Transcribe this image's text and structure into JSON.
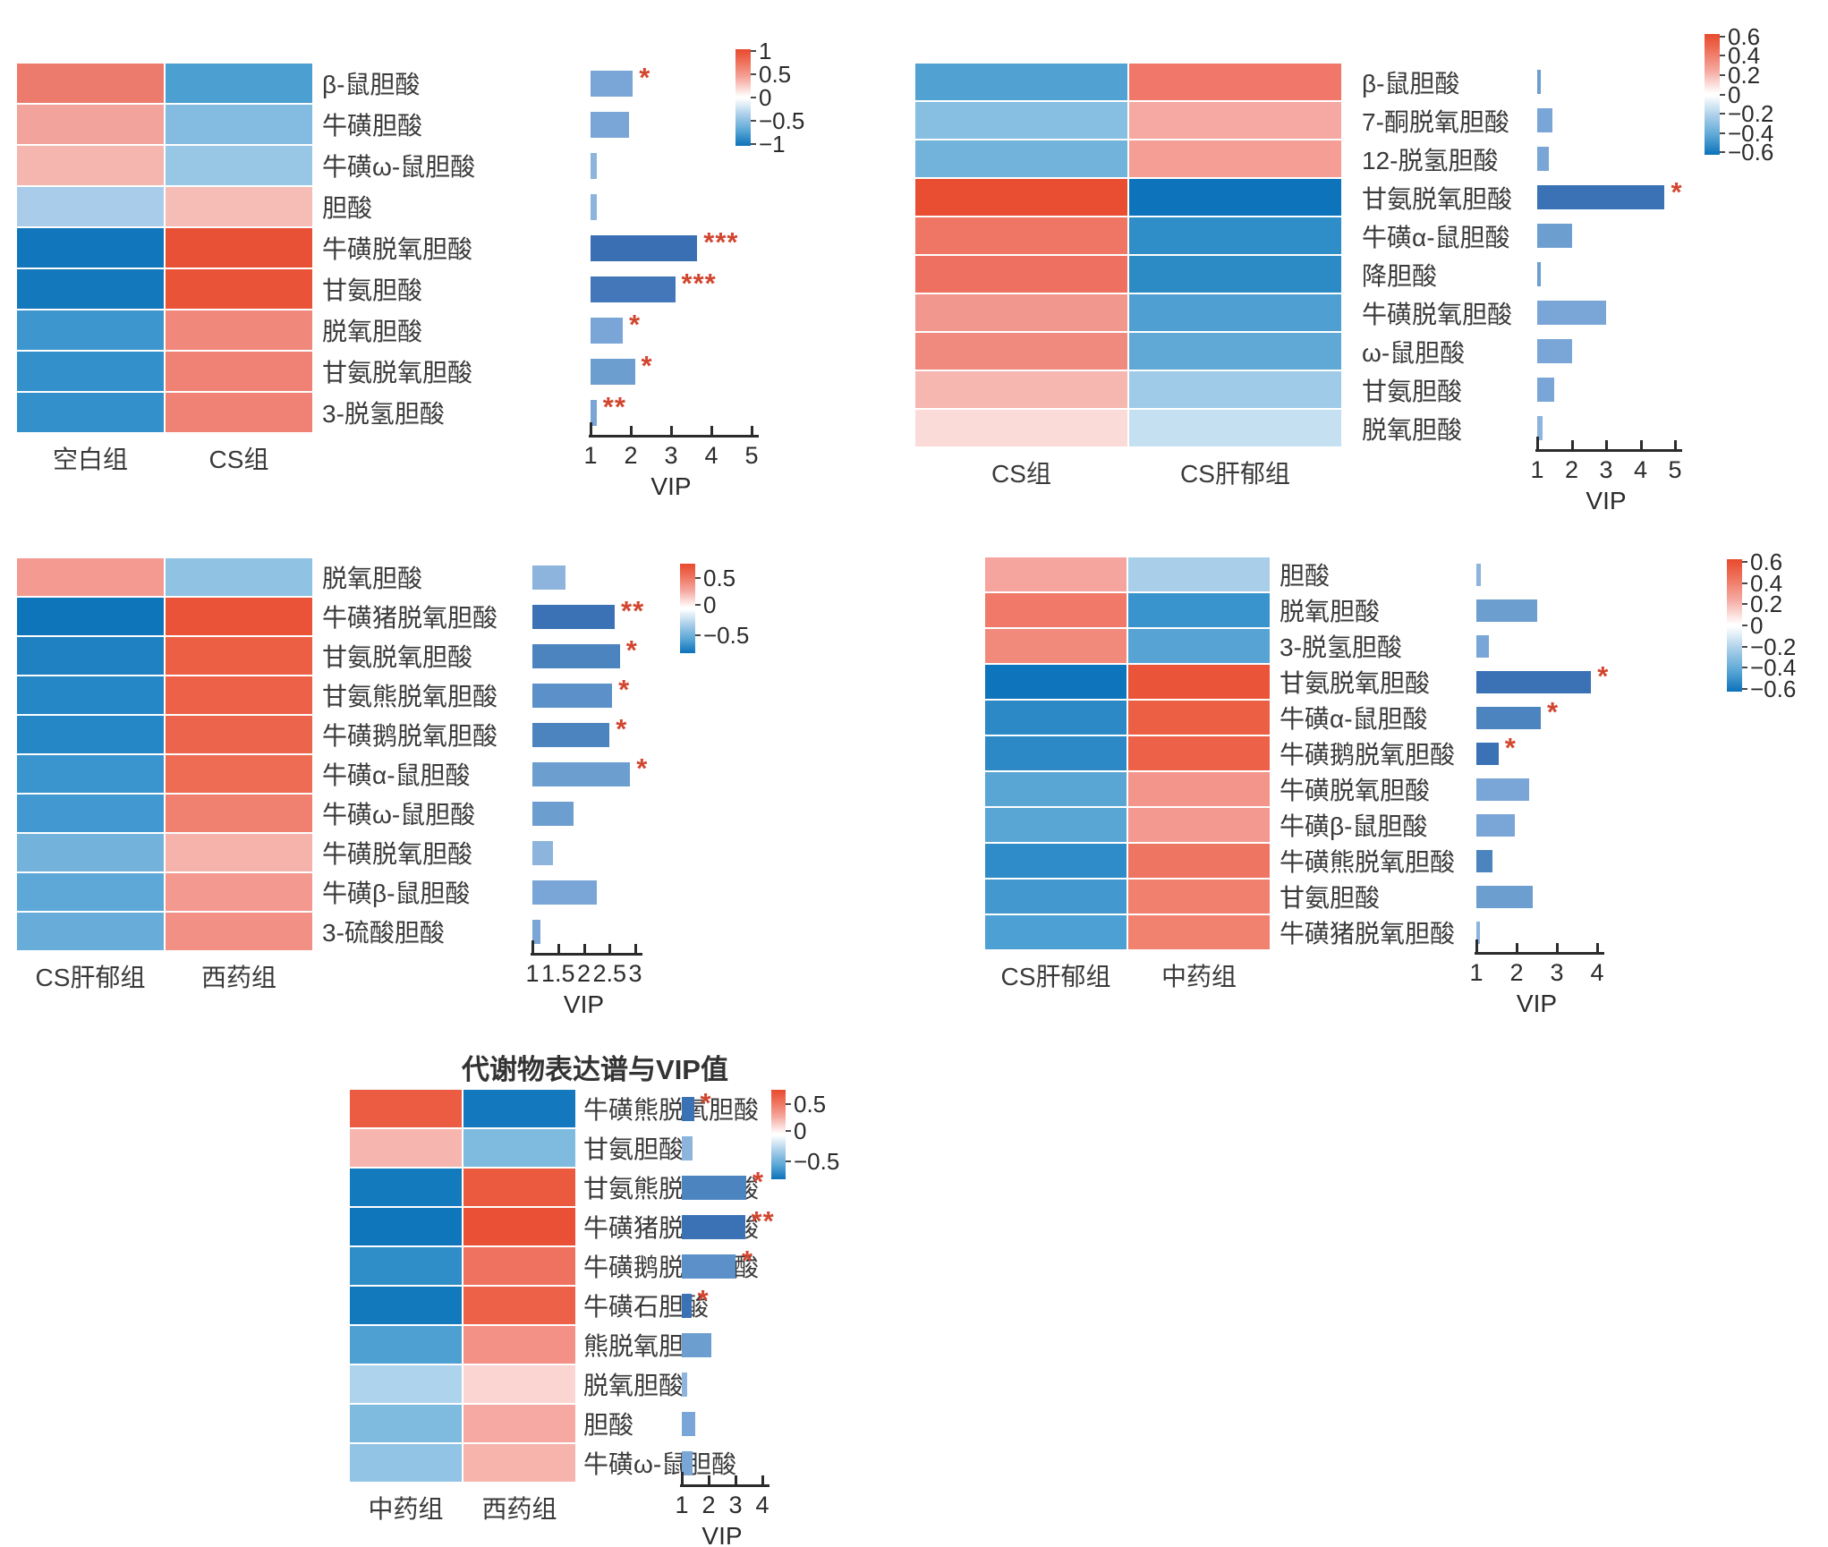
{
  "title": "代谢物表达谱与VIP值",
  "colors": {
    "star": "#d2462f",
    "axis": "#2b2b2b",
    "text": "#3a3a3a",
    "background": "#ffffff"
  },
  "chart_data": [
    {
      "id": "panel-1",
      "type": "heatmap+bar",
      "group_labels": [
        "空白组",
        "CS组"
      ],
      "vip_axis": {
        "label": "VIP",
        "min": 1,
        "max": 5,
        "ticks": [
          "1",
          "2",
          "3",
          "4",
          "5"
        ]
      },
      "colorbar": {
        "tick_labels": [
          "1",
          "0.5",
          "0",
          "−0.5",
          "−1"
        ],
        "tick_positions_pct": [
          2,
          26,
          50,
          74,
          98
        ]
      },
      "rows": [
        {
          "metabolite": "β-鼠胆酸",
          "heat": [
            "#ed7b6d",
            "#4c9fd1"
          ],
          "vip": 2.05,
          "significance": "*",
          "bar_color": "#79a6d7"
        },
        {
          "metabolite": "牛磺胆酸",
          "heat": [
            "#f2a39c",
            "#84bce1"
          ],
          "vip": 1.95,
          "significance": "",
          "bar_color": "#79a6d7"
        },
        {
          "metabolite": "牛磺ω-鼠胆酸",
          "heat": [
            "#f5b6b0",
            "#98c7e6"
          ],
          "vip": 1.15,
          "significance": "",
          "bar_color": "#8cb4dc"
        },
        {
          "metabolite": "胆酸",
          "heat": [
            "#a8cce9",
            "#f6bcb6"
          ],
          "vip": 1.15,
          "significance": "",
          "bar_color": "#8cb4dc"
        },
        {
          "metabolite": "牛磺脱氧胆酸",
          "heat": [
            "#1176bc",
            "#e95136"
          ],
          "vip": 3.65,
          "significance": "***",
          "bar_color": "#3a70b3"
        },
        {
          "metabolite": "甘氨胆酸",
          "heat": [
            "#1478bd",
            "#e95338"
          ],
          "vip": 3.1,
          "significance": "***",
          "bar_color": "#4377ba"
        },
        {
          "metabolite": "脱氧胆酸",
          "heat": [
            "#3e96cf",
            "#f0897b"
          ],
          "vip": 1.8,
          "significance": "*",
          "bar_color": "#79a6d7"
        },
        {
          "metabolite": "甘氨脱氧胆酸",
          "heat": [
            "#3390cb",
            "#ef8274"
          ],
          "vip": 2.1,
          "significance": "*",
          "bar_color": "#6d9ed0"
        },
        {
          "metabolite": "3-脱氢胆酸",
          "heat": [
            "#3390cb",
            "#ef8274"
          ],
          "vip": 1.15,
          "significance": "**",
          "bar_color": "#79a6d7"
        }
      ]
    },
    {
      "id": "panel-2",
      "type": "heatmap+bar",
      "group_labels": [
        "CS组",
        "CS肝郁组"
      ],
      "vip_axis": {
        "label": "VIP",
        "min": 1,
        "max": 5,
        "ticks": [
          "1",
          "2",
          "3",
          "4",
          "5"
        ]
      },
      "colorbar": {
        "tick_labels": [
          "0.6",
          "0.4",
          "0.2",
          "0",
          "−0.2",
          "−0.4",
          "−0.6"
        ],
        "tick_positions_pct": [
          2,
          18,
          34,
          50,
          66,
          82,
          98
        ]
      },
      "rows": [
        {
          "metabolite": "β-鼠胆酸",
          "heat": [
            "#51a2d3",
            "#f0776a"
          ],
          "vip": 1.1,
          "significance": "",
          "bar_color": "#6d9ed0"
        },
        {
          "metabolite": "7-酮脱氧胆酸",
          "heat": [
            "#86bfe2",
            "#f5a9a2"
          ],
          "vip": 1.45,
          "significance": "",
          "bar_color": "#79a6d7"
        },
        {
          "metabolite": "12-脱氢胆酸",
          "heat": [
            "#72b3db",
            "#f49e96"
          ],
          "vip": 1.35,
          "significance": "",
          "bar_color": "#79a6d7"
        },
        {
          "metabolite": "甘氨脱氧胆酸",
          "heat": [
            "#e94e33",
            "#0d73bb"
          ],
          "vip": 4.7,
          "significance": "*",
          "bar_color": "#3a72b5"
        },
        {
          "metabolite": "牛磺α-鼠胆酸",
          "heat": [
            "#ef7564",
            "#2f8dc7"
          ],
          "vip": 2.0,
          "significance": "",
          "bar_color": "#6d9ed0"
        },
        {
          "metabolite": "降胆酸",
          "heat": [
            "#ee7060",
            "#2c8ac5"
          ],
          "vip": 1.1,
          "significance": "",
          "bar_color": "#6d9ed0"
        },
        {
          "metabolite": "牛磺脱氧胆酸",
          "heat": [
            "#f2978d",
            "#4f9fd2"
          ],
          "vip": 3.0,
          "significance": "",
          "bar_color": "#79a6d7"
        },
        {
          "metabolite": "ω-鼠胆酸",
          "heat": [
            "#f18a7e",
            "#60a9d7"
          ],
          "vip": 2.0,
          "significance": "",
          "bar_color": "#79a6d7"
        },
        {
          "metabolite": "甘氨胆酸",
          "heat": [
            "#f6b7b1",
            "#a0cbe8"
          ],
          "vip": 1.5,
          "significance": "",
          "bar_color": "#79a6d7"
        },
        {
          "metabolite": "脱氧胆酸",
          "heat": [
            "#fbdbd7",
            "#c5e0f1"
          ],
          "vip": 1.15,
          "significance": "",
          "bar_color": "#8cb4dc"
        }
      ]
    },
    {
      "id": "panel-3",
      "type": "heatmap+bar",
      "group_labels": [
        "CS肝郁组",
        "西药组"
      ],
      "vip_axis": {
        "label": "VIP",
        "min": 1,
        "max": 3,
        "ticks": [
          "1",
          "1.5",
          "2",
          "2.5",
          "3"
        ]
      },
      "colorbar": {
        "tick_labels": [
          "0.5",
          "0",
          "−0.5"
        ],
        "tick_positions_pct": [
          16,
          46,
          80
        ]
      },
      "rows": [
        {
          "metabolite": "脱氧胆酸",
          "heat": [
            "#f49a91",
            "#90c2e4"
          ],
          "vip": 1.65,
          "significance": "",
          "bar_color": "#8cb4dc"
        },
        {
          "metabolite": "牛磺猪脱氧胆酸",
          "heat": [
            "#0f75bb",
            "#ea5338"
          ],
          "vip": 2.6,
          "significance": "**",
          "bar_color": "#3a72b5"
        },
        {
          "metabolite": "甘氨脱氧胆酸",
          "heat": [
            "#2081c2",
            "#ec5f45"
          ],
          "vip": 2.7,
          "significance": "*",
          "bar_color": "#4c84c0"
        },
        {
          "metabolite": "甘氨熊脱氧胆酸",
          "heat": [
            "#2687c6",
            "#ed6149"
          ],
          "vip": 2.55,
          "significance": "*",
          "bar_color": "#5b90c8"
        },
        {
          "metabolite": "牛磺鹅脱氧胆酸",
          "heat": [
            "#2687c6",
            "#ed644c"
          ],
          "vip": 2.5,
          "significance": "*",
          "bar_color": "#4c84c0"
        },
        {
          "metabolite": "牛磺α-鼠胆酸",
          "heat": [
            "#3a95cf",
            "#ee6b54"
          ],
          "vip": 2.9,
          "significance": "*",
          "bar_color": "#6d9ed0"
        },
        {
          "metabolite": "牛磺ω-鼠胆酸",
          "heat": [
            "#4299d1",
            "#f08171"
          ],
          "vip": 1.8,
          "significance": "",
          "bar_color": "#6d9ed0"
        },
        {
          "metabolite": "牛磺脱氧胆酸",
          "heat": [
            "#73b2db",
            "#f6b3ac"
          ],
          "vip": 1.4,
          "significance": "",
          "bar_color": "#8cb4dc"
        },
        {
          "metabolite": "牛磺β-鼠胆酸",
          "heat": [
            "#5da8d6",
            "#f3998f"
          ],
          "vip": 2.25,
          "significance": "",
          "bar_color": "#79a6d7"
        },
        {
          "metabolite": "3-硫酸胆酸",
          "heat": [
            "#68add9",
            "#f29086"
          ],
          "vip": 1.15,
          "significance": "",
          "bar_color": "#79a6d7"
        }
      ]
    },
    {
      "id": "panel-4",
      "type": "heatmap+bar",
      "group_labels": [
        "CS肝郁组",
        "中药组"
      ],
      "vip_axis": {
        "label": "VIP",
        "min": 1,
        "max": 4,
        "ticks": [
          "1",
          "2",
          "3",
          "4"
        ]
      },
      "colorbar": {
        "tick_labels": [
          "0.6",
          "0.4",
          "0.2",
          "0",
          "−0.2",
          "−0.4",
          "−0.6"
        ],
        "tick_positions_pct": [
          2,
          18,
          34,
          50,
          66,
          82,
          98
        ]
      },
      "rows": [
        {
          "metabolite": "胆酸",
          "heat": [
            "#f5a59d",
            "#a9cee9"
          ],
          "vip": 1.1,
          "significance": "",
          "bar_color": "#8cb4dc"
        },
        {
          "metabolite": "脱氧胆酸",
          "heat": [
            "#f0796a",
            "#3993cd"
          ],
          "vip": 2.5,
          "significance": "",
          "bar_color": "#6d9ed0"
        },
        {
          "metabolite": "3-脱氢胆酸",
          "heat": [
            "#f28a7c",
            "#57a4d4"
          ],
          "vip": 1.3,
          "significance": "",
          "bar_color": "#79a6d7"
        },
        {
          "metabolite": "甘氨脱氧胆酸",
          "heat": [
            "#0e74bb",
            "#ea5439"
          ],
          "vip": 3.85,
          "significance": "*",
          "bar_color": "#3a72b5"
        },
        {
          "metabolite": "牛磺α-鼠胆酸",
          "heat": [
            "#2c89c6",
            "#ec5f45"
          ],
          "vip": 2.6,
          "significance": "*",
          "bar_color": "#4c84c0"
        },
        {
          "metabolite": "牛磺鹅脱氧胆酸",
          "heat": [
            "#2c89c6",
            "#ec6148"
          ],
          "vip": 1.55,
          "significance": "*",
          "bar_color": "#3a72b5"
        },
        {
          "metabolite": "牛磺脱氧胆酸",
          "heat": [
            "#59a6d5",
            "#f3958b"
          ],
          "vip": 2.3,
          "significance": "",
          "bar_color": "#79a6d7"
        },
        {
          "metabolite": "牛磺β-鼠胆酸",
          "heat": [
            "#59a6d5",
            "#f3998f"
          ],
          "vip": 1.95,
          "significance": "",
          "bar_color": "#79a6d7"
        },
        {
          "metabolite": "牛磺熊脱氧胆酸",
          "heat": [
            "#308cc8",
            "#ef7563"
          ],
          "vip": 1.4,
          "significance": "",
          "bar_color": "#4c84c0"
        },
        {
          "metabolite": "甘氨胆酸",
          "heat": [
            "#4398d0",
            "#f1806f"
          ],
          "vip": 2.4,
          "significance": "",
          "bar_color": "#6d9ed0"
        },
        {
          "metabolite": "牛磺猪脱氧胆酸",
          "heat": [
            "#4da0d3",
            "#f1826f"
          ],
          "vip": 1.05,
          "significance": "",
          "bar_color": "#8cb4dc"
        }
      ]
    },
    {
      "id": "panel-5",
      "type": "heatmap+bar",
      "group_labels": [
        "中药组",
        "西药组"
      ],
      "vip_axis": {
        "label": "VIP",
        "min": 1,
        "max": 4,
        "ticks": [
          "1",
          "2",
          "3",
          "4"
        ]
      },
      "colorbar": {
        "tick_labels": [
          "0.5",
          "0",
          "−0.5"
        ],
        "tick_positions_pct": [
          16,
          46,
          80
        ]
      },
      "rows": [
        {
          "metabolite": "牛磺熊脱氧胆酸",
          "heat": [
            "#eb5c42",
            "#1378bd"
          ],
          "vip": 1.45,
          "significance": "*",
          "bar_color": "#3a72b5"
        },
        {
          "metabolite": "甘氨胆酸",
          "heat": [
            "#f6b6af",
            "#7fbadf"
          ],
          "vip": 1.4,
          "significance": "",
          "bar_color": "#8cb4dc"
        },
        {
          "metabolite": "甘氨熊脱氧胆酸",
          "heat": [
            "#137abd",
            "#eb5a3f"
          ],
          "vip": 3.4,
          "significance": "*",
          "bar_color": "#4c84c0"
        },
        {
          "metabolite": "牛磺猪脱氧胆酸",
          "heat": [
            "#1076bb",
            "#ea5035"
          ],
          "vip": 3.35,
          "significance": "**",
          "bar_color": "#3a72b5"
        },
        {
          "metabolite": "牛磺鹅脱氧胆酸",
          "heat": [
            "#2f8dc7",
            "#ef7260"
          ],
          "vip": 3.0,
          "significance": "*",
          "bar_color": "#5b90c8"
        },
        {
          "metabolite": "牛磺石胆酸",
          "heat": [
            "#1279bd",
            "#ed6149"
          ],
          "vip": 1.35,
          "significance": "*",
          "bar_color": "#3a72b5"
        },
        {
          "metabolite": "熊脱氧胆酸",
          "heat": [
            "#4ea0d2",
            "#f39187"
          ],
          "vip": 2.1,
          "significance": "",
          "bar_color": "#6d9ed0"
        },
        {
          "metabolite": "脱氧胆酸",
          "heat": [
            "#aed3ec",
            "#fbd5d1"
          ],
          "vip": 1.2,
          "significance": "",
          "bar_color": "#8cb4dc"
        },
        {
          "metabolite": "胆酸",
          "heat": [
            "#7fbadf",
            "#f5a9a2"
          ],
          "vip": 1.5,
          "significance": "",
          "bar_color": "#79a6d7"
        },
        {
          "metabolite": "牛磺ω-鼠胆酸",
          "heat": [
            "#92c4e5",
            "#f6b4ad"
          ],
          "vip": 1.4,
          "significance": "",
          "bar_color": "#79a6d7"
        }
      ]
    }
  ]
}
